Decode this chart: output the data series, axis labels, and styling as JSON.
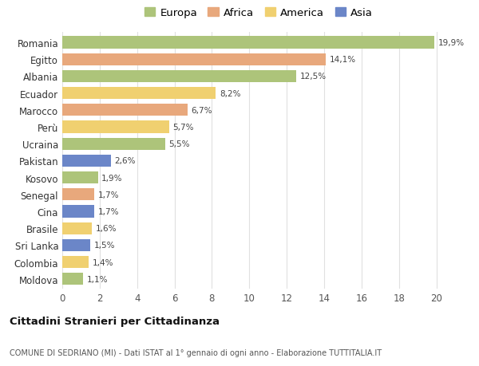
{
  "countries": [
    "Romania",
    "Egitto",
    "Albania",
    "Ecuador",
    "Marocco",
    "Perù",
    "Ucraina",
    "Pakistan",
    "Kosovo",
    "Senegal",
    "Cina",
    "Brasile",
    "Sri Lanka",
    "Colombia",
    "Moldova"
  ],
  "values": [
    19.9,
    14.1,
    12.5,
    8.2,
    6.7,
    5.7,
    5.5,
    2.6,
    1.9,
    1.7,
    1.7,
    1.6,
    1.5,
    1.4,
    1.1
  ],
  "labels": [
    "19,9%",
    "14,1%",
    "12,5%",
    "8,2%",
    "6,7%",
    "5,7%",
    "5,5%",
    "2,6%",
    "1,9%",
    "1,7%",
    "1,7%",
    "1,6%",
    "1,5%",
    "1,4%",
    "1,1%"
  ],
  "continents": [
    "Europa",
    "Africa",
    "Europa",
    "America",
    "Africa",
    "America",
    "Europa",
    "Asia",
    "Europa",
    "Africa",
    "Asia",
    "America",
    "Asia",
    "America",
    "Europa"
  ],
  "colors": {
    "Europa": "#adc47a",
    "Africa": "#e8a87c",
    "America": "#f0d070",
    "Asia": "#6b86c8"
  },
  "legend_order": [
    "Europa",
    "Africa",
    "America",
    "Asia"
  ],
  "title": "Cittadini Stranieri per Cittadinanza",
  "subtitle": "COMUNE DI SEDRIANO (MI) - Dati ISTAT al 1° gennaio di ogni anno - Elaborazione TUTTITALIA.IT",
  "xlim": [
    0,
    21
  ],
  "xticks": [
    0,
    2,
    4,
    6,
    8,
    10,
    12,
    14,
    16,
    18,
    20
  ],
  "background_color": "#ffffff",
  "bar_height": 0.72,
  "grid_color": "#e0e0e0"
}
